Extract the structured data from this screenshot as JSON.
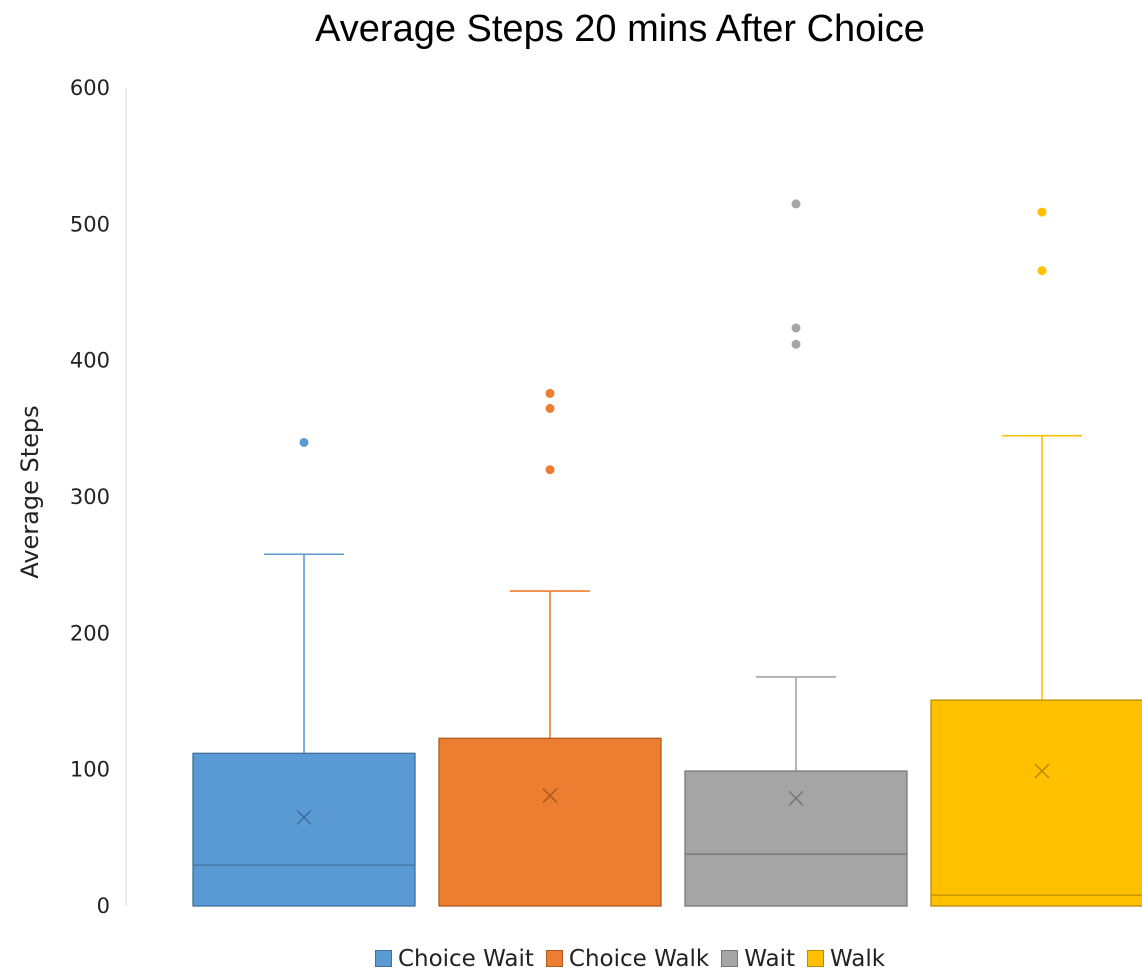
{
  "chart_data": {
    "type": "box",
    "title": "Average Steps 20 mins After Choice",
    "ylabel": "Average Steps",
    "ylim": [
      0,
      600
    ],
    "yticks": [
      0,
      100,
      200,
      300,
      400,
      500,
      600
    ],
    "legend_position": "bottom",
    "grid": false,
    "series": [
      {
        "name": "Choice Wait",
        "color": "#5B9BD5",
        "edge": "#41719C",
        "min": 0,
        "q1": 0,
        "median": 30,
        "mean": 65,
        "q3": 112,
        "max": 258,
        "outliers": [
          340
        ]
      },
      {
        "name": "Choice Walk",
        "color": "#ED7D31",
        "edge": "#AE5A21",
        "min": 0,
        "q1": 0,
        "median": 0,
        "mean": 81,
        "q3": 123,
        "max": 231,
        "outliers": [
          320,
          365,
          376
        ]
      },
      {
        "name": "Wait",
        "color": "#A5A5A5",
        "edge": "#787878",
        "min": 0,
        "q1": 0,
        "median": 38,
        "mean": 79,
        "q3": 99,
        "max": 168,
        "outliers": [
          412,
          424,
          515
        ]
      },
      {
        "name": "Walk",
        "color": "#FFC000",
        "edge": "#BC8C00",
        "min": 0,
        "q1": 0,
        "median": 8,
        "mean": 99,
        "q3": 151,
        "max": 345,
        "outliers": [
          466,
          509
        ]
      }
    ]
  }
}
